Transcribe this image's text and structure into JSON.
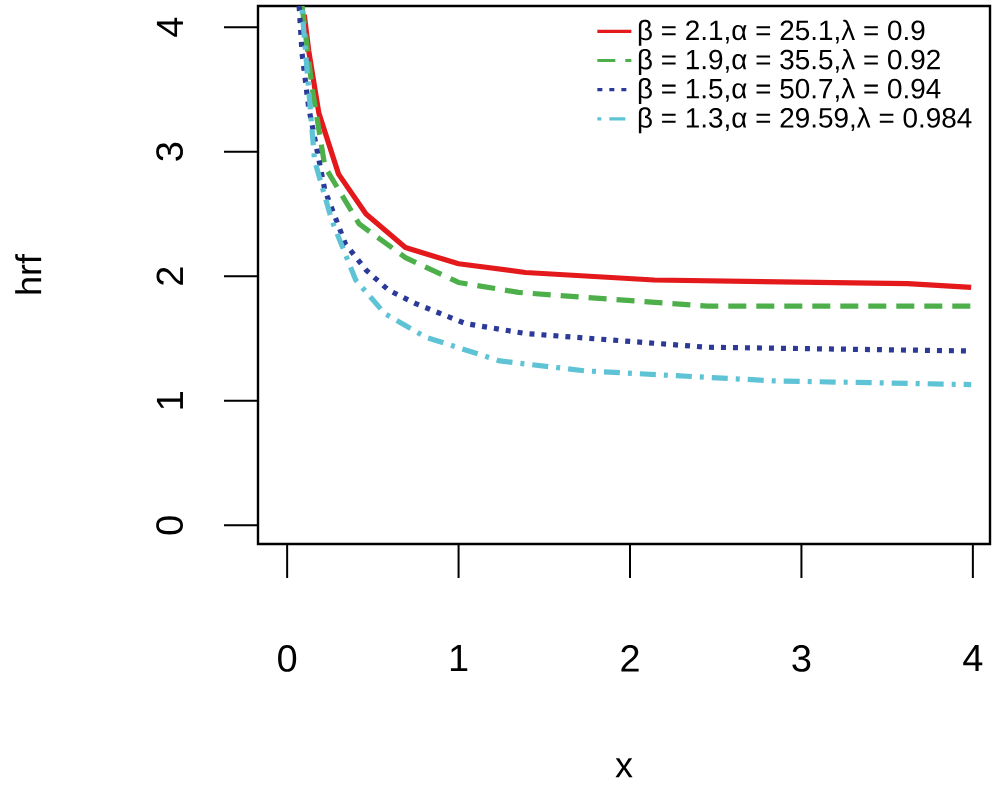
{
  "chart_data": {
    "type": "line",
    "xlabel": "x",
    "ylabel": "hrf",
    "xlim": [
      -0.17,
      4.1
    ],
    "ylim": [
      -0.15,
      4.17
    ],
    "xticks": [
      0,
      1,
      2,
      3,
      4
    ],
    "yticks": [
      0,
      1,
      2,
      3,
      4
    ],
    "legend": "top right",
    "series": [
      {
        "name": "β = 2.1,α = 25.1,λ = 0.9",
        "color": "#e3191c",
        "line_style": "solid",
        "x": [
          0.1,
          0.126,
          0.185,
          0.3,
          0.46,
          0.69,
          1.0,
          1.39,
          2.14,
          3.62,
          3.99
        ],
        "values": [
          4.1,
          3.81,
          3.31,
          2.82,
          2.5,
          2.23,
          2.1,
          2.03,
          1.97,
          1.94,
          1.91
        ]
      },
      {
        "name": "β = 1.9,α = 35.5,λ = 0.92",
        "color": "#4daf4a",
        "line_style": "dashed",
        "x": [
          0.087,
          0.145,
          0.22,
          0.42,
          0.69,
          1.0,
          1.35,
          1.74,
          2.45,
          3.99
        ],
        "values": [
          4.17,
          3.52,
          2.88,
          2.42,
          2.15,
          1.95,
          1.87,
          1.83,
          1.76,
          1.76
        ]
      },
      {
        "name": "β = 1.5,α = 50.7,λ = 0.94",
        "color": "#2b3a98",
        "line_style": "dotted",
        "x": [
          0.07,
          0.087,
          0.125,
          0.22,
          0.34,
          0.46,
          0.59,
          0.75,
          1.04,
          1.39,
          2.45,
          3.99
        ],
        "values": [
          4.17,
          3.79,
          3.36,
          2.69,
          2.26,
          2.05,
          1.89,
          1.78,
          1.62,
          1.54,
          1.43,
          1.4
        ]
      },
      {
        "name": "β = 1.3,α = 29.59,λ = 0.984",
        "color": "#5fc3d6",
        "line_style": "dashdot",
        "x": [
          0.087,
          0.16,
          0.26,
          0.4,
          0.57,
          0.81,
          1.24,
          1.74,
          2.84,
          3.99
        ],
        "values": [
          4.14,
          2.93,
          2.45,
          1.97,
          1.7,
          1.51,
          1.32,
          1.24,
          1.16,
          1.13
        ]
      }
    ]
  }
}
